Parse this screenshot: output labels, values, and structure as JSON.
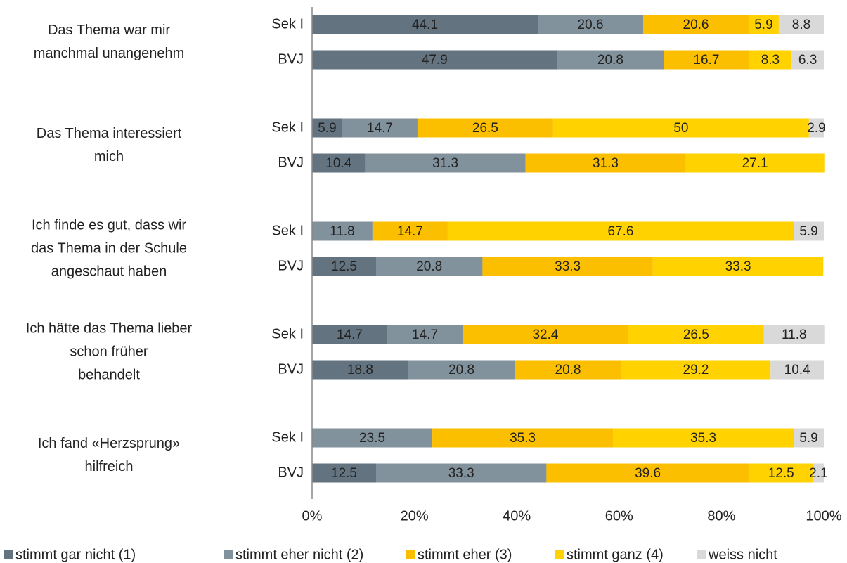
{
  "chart_data": {
    "type": "stacked-bar-horizontal",
    "groups": [
      [
        "Das Thema war mir",
        "manchmal unangenehm"
      ],
      [
        "Das Thema interessiert",
        "mich"
      ],
      [
        "Ich finde es gut, dass wir",
        "das Thema in der Schule",
        "angeschaut haben"
      ],
      [
        "Ich hätte das Thema lieber",
        "schon früher",
        "behandelt"
      ],
      [
        "Ich fand «Herzsprung»",
        "hilfreich"
      ]
    ],
    "categories": [
      "Sek I",
      "BVJ",
      "Sek I",
      "BVJ",
      "Sek I",
      "BVJ",
      "Sek I",
      "BVJ",
      "Sek I",
      "BVJ"
    ],
    "series": [
      {
        "name": "stimmt gar nicht (1)",
        "color": "#637380",
        "values": [
          44.1,
          47.9,
          5.9,
          10.4,
          null,
          12.5,
          14.7,
          18.8,
          null,
          12.5
        ]
      },
      {
        "name": "stimmt eher nicht (2)",
        "color": "#82929c",
        "values": [
          20.6,
          20.8,
          14.7,
          31.3,
          11.8,
          20.8,
          14.7,
          20.8,
          23.5,
          33.3
        ]
      },
      {
        "name": "stimmt eher (3)",
        "color": "#fcbf00",
        "values": [
          20.6,
          16.7,
          26.5,
          31.3,
          14.7,
          33.3,
          32.4,
          20.8,
          35.3,
          39.6
        ]
      },
      {
        "name": "stimmt ganz (4)",
        "color": "#ffd200",
        "values": [
          5.9,
          8.3,
          50,
          27.1,
          67.6,
          33.3,
          26.5,
          29.2,
          35.3,
          12.5
        ]
      },
      {
        "name": "weiss nicht",
        "color": "#d9d9d9",
        "values": [
          8.8,
          6.3,
          2.9,
          null,
          5.9,
          null,
          11.8,
          10.4,
          5.9,
          2.1
        ]
      }
    ],
    "xlim": [
      0,
      100
    ],
    "xticks": [
      {
        "value": 0,
        "label": "0%"
      },
      {
        "value": 20,
        "label": "20%"
      },
      {
        "value": 40,
        "label": "40%"
      },
      {
        "value": 60,
        "label": "60%"
      },
      {
        "value": 80,
        "label": "80%"
      },
      {
        "value": 100,
        "label": "100%"
      }
    ],
    "legend": "bottom"
  }
}
